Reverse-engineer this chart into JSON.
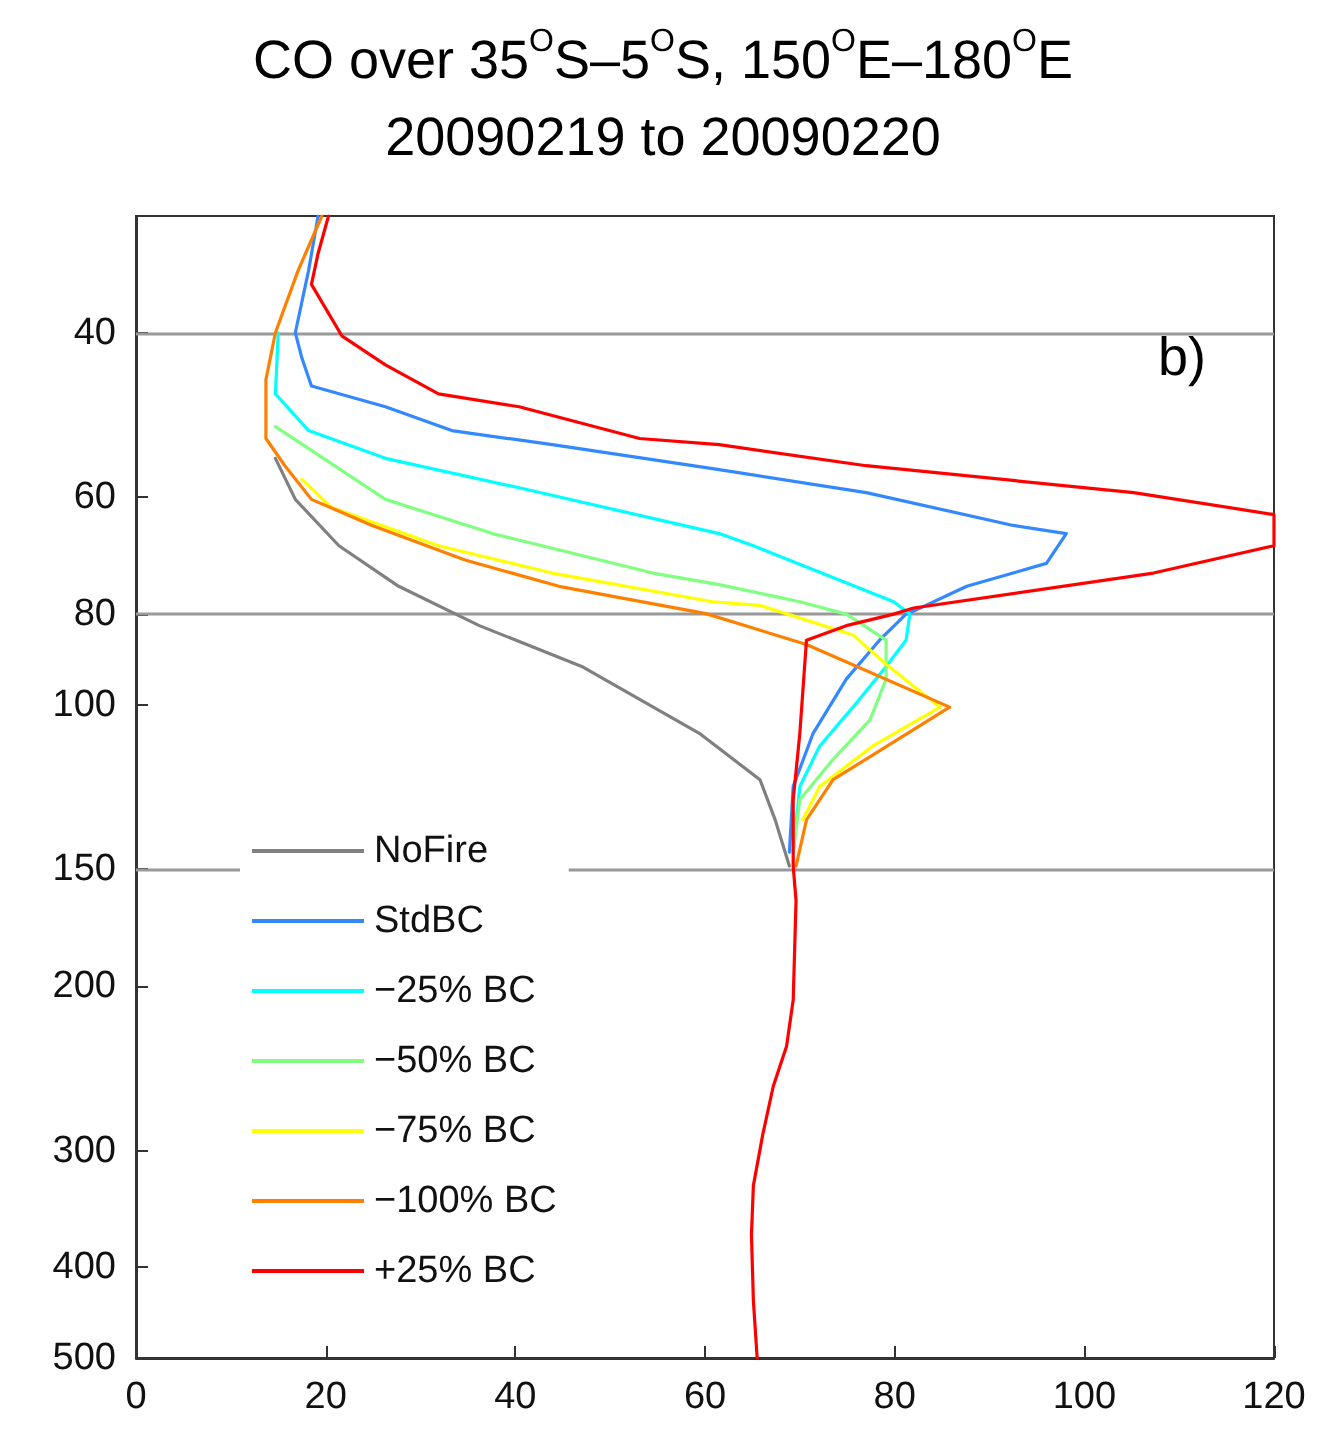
{
  "chart_data": {
    "type": "line",
    "title": "CO over 35$^{O}$S–5$^{O}$S, 150$^{O}$E–180$^{O}$E",
    "subtitle": "20090219 to 20090220",
    "annotations": [
      "b)"
    ],
    "xlim": [
      0,
      120
    ],
    "xticks": [
      0,
      20,
      40,
      60,
      80,
      100,
      120
    ],
    "ylim": [
      500,
      30
    ],
    "yticks": [
      40,
      60,
      80,
      100,
      150,
      200,
      300,
      400,
      500
    ],
    "log": "y",
    "grid": false,
    "legend": "bottom left",
    "marker": "none",
    "line_style": "solid",
    "ref_lines": [
      {
        "axis": "y",
        "value": 40,
        "color": "#999999"
      },
      {
        "axis": "y",
        "value": 80,
        "color": "#999999"
      },
      {
        "axis": "y",
        "value": 150,
        "color": "#999999"
      }
    ],
    "series": [
      {
        "name": "NoFire",
        "color": "#808080",
        "x": [
          14.7,
          16.8,
          21.4,
          27.7,
          36.2,
          47,
          59.4,
          65.8,
          67.4,
          68.9
        ],
        "values": [
          54.5,
          60.3,
          67.6,
          74.7,
          82.3,
          91,
          107.3,
          120.3,
          132.8,
          148.8
        ]
      },
      {
        "name": "StdBC",
        "color": "#3388ff",
        "x": [
          19.2,
          18.2,
          16.8,
          17.5,
          18.5,
          26.3,
          33.3,
          43.9,
          60.8,
          77,
          92.5,
          98.1,
          96,
          87.6,
          82,
          81.2,
          78.4,
          74.9,
          71.4,
          69.3,
          68.9
        ],
        "values": [
          30,
          34.3,
          40,
          42.6,
          45.6,
          48,
          50.9,
          52.7,
          55.9,
          59.3,
          64.3,
          65.6,
          70.6,
          74.7,
          79.4,
          80,
          85.3,
          93.9,
          107.3,
          122.3,
          143.8
        ]
      },
      {
        "name": "−25% BC",
        "color": "#00ffff",
        "x": [
          15,
          14.7,
          18.2,
          26.3,
          40.4,
          61.5,
          65.1,
          79.9,
          81.6,
          81.2,
          79.1,
          75.6,
          72.1,
          70,
          69.3
        ],
        "values": [
          40,
          46.5,
          50.9,
          54.5,
          58.6,
          65.6,
          67.6,
          77.6,
          80,
          85.3,
          91,
          100.6,
          110.7,
          122.3,
          143.8
        ]
      },
      {
        "name": "−50% BC",
        "color": "#80ff80",
        "x": [
          14.7,
          26.3,
          37.6,
          54.5,
          61.5,
          70,
          74.9,
          79.1,
          79.1,
          77.4,
          73.5,
          70,
          69.3
        ],
        "values": [
          50.4,
          60.3,
          65.6,
          72.3,
          74.4,
          77.6,
          80,
          85.3,
          93.9,
          103.8,
          114.4,
          126.4,
          143.8
        ]
      },
      {
        "name": "−75% BC",
        "color": "#ffff00",
        "x": [
          17.5,
          20.6,
          31.9,
          43.9,
          60.8,
          65.8,
          75.6,
          79.1,
          84.8,
          77.7,
          72.1,
          70.3
        ],
        "values": [
          57.4,
          61.5,
          67.6,
          72.3,
          77.6,
          78.3,
          84.2,
          90.5,
          100.6,
          110.7,
          122.3,
          132.8
        ]
      },
      {
        "name": "−100% BC",
        "color": "#ff8000",
        "x": [
          19.6,
          17.1,
          14.7,
          13.7,
          13.7,
          15.7,
          18.5,
          24.9,
          34.7,
          44.6,
          60.1,
          70.7,
          85.8,
          73.5,
          70.7,
          69.6
        ],
        "values": [
          30,
          34.3,
          40,
          44.9,
          51.9,
          55.5,
          60.3,
          64.3,
          70,
          74.7,
          79.9,
          86.2,
          100.6,
          120.3,
          132.8,
          148.8
        ]
      },
      {
        "name": "+25% BC",
        "color": "#ff0000",
        "x": [
          20.3,
          19.2,
          18.5,
          21.7,
          26.3,
          31.9,
          40.4,
          53.1,
          61.5,
          77,
          105.2,
          120,
          120,
          107.3,
          82,
          79.9,
          74.9,
          70.7,
          70,
          69.3,
          69.3,
          69.6,
          69.3,
          68.6,
          67.2,
          66.1,
          65.1,
          64.9,
          65.1,
          65.5
        ],
        "values": [
          30,
          32.9,
          35.5,
          40.3,
          43.3,
          46.5,
          48,
          51.9,
          52.7,
          55.5,
          59.3,
          62.6,
          67.6,
          72.3,
          78.8,
          80,
          82.3,
          85.3,
          107.3,
          126.4,
          148.8,
          162,
          207,
          232,
          256,
          288,
          327,
          369,
          434,
          500
        ]
      }
    ]
  }
}
